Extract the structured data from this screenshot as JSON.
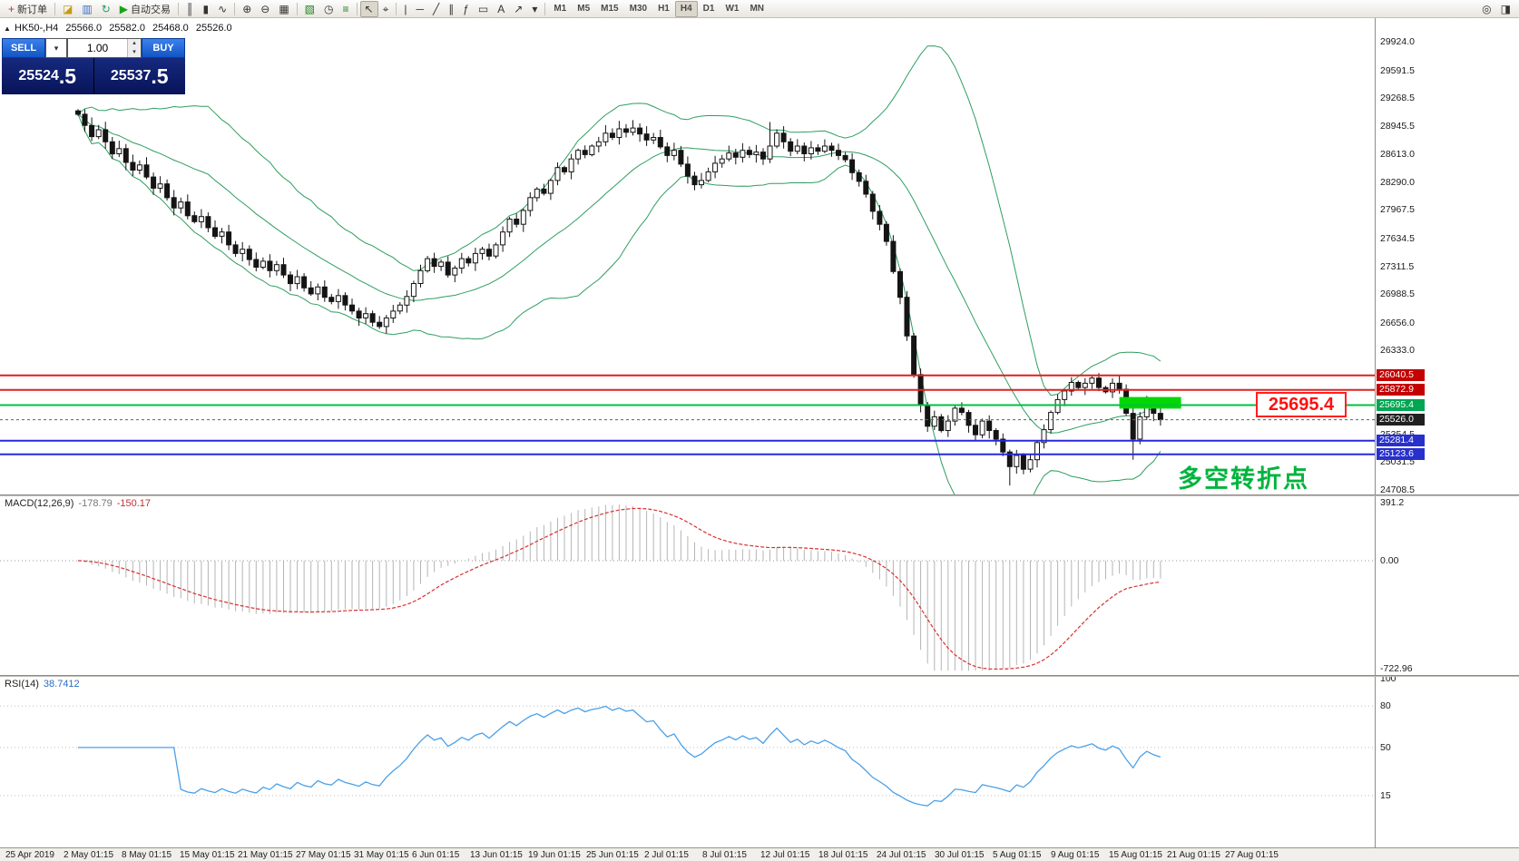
{
  "icons": {
    "collapse": "▲",
    "caret_down": "▾",
    "spin_up": "▴",
    "spin_down": "▾"
  },
  "toolbar": {
    "groups": [
      {
        "items": [
          {
            "name": "new-order-button",
            "glyph": "+",
            "glyph_color": "#c93030",
            "label": "新订单"
          }
        ]
      },
      {
        "items": [
          {
            "name": "chart-window-icon",
            "glyph": "◪",
            "glyph_color": "#c89a10"
          },
          {
            "name": "profile-icon",
            "glyph": "▥",
            "glyph_color": "#3a6cc8"
          },
          {
            "name": "refresh-icon",
            "glyph": "↻",
            "glyph_color": "#2a9a60"
          },
          {
            "name": "autotrading-button",
            "glyph": "▶",
            "glyph_color": "#18a318",
            "label": "自动交易"
          }
        ]
      },
      {
        "items": [
          {
            "name": "bar-chart-type-icon",
            "glyph": "║"
          },
          {
            "name": "candle-chart-type-icon",
            "glyph": "▮"
          },
          {
            "name": "line-chart-type-icon",
            "glyph": "∿"
          }
        ]
      },
      {
        "items": [
          {
            "name": "zoom-in-icon",
            "glyph": "⊕"
          },
          {
            "name": "zoom-out-icon",
            "glyph": "⊖"
          },
          {
            "name": "tile-windows-icon",
            "glyph": "▦"
          }
        ]
      },
      {
        "items": [
          {
            "name": "new-chart-icon",
            "glyph": "▧",
            "glyph_color": "#18831a"
          },
          {
            "name": "periods-icon",
            "glyph": "◷"
          },
          {
            "name": "indicators-icon",
            "glyph": "≡",
            "glyph_color": "#18831a"
          }
        ]
      },
      {
        "items": [
          {
            "name": "cursor-icon",
            "glyph": "↖",
            "active": true
          },
          {
            "name": "crosshair-icon",
            "glyph": "⌖"
          }
        ]
      },
      {
        "items": [
          {
            "name": "vertical-line-icon",
            "glyph": "|"
          },
          {
            "name": "horizontal-line-icon",
            "glyph": "─"
          },
          {
            "name": "trendline-icon",
            "glyph": "╱"
          },
          {
            "name": "channel-icon",
            "glyph": "∥"
          },
          {
            "name": "fibonacci-icon",
            "glyph": "ƒ"
          },
          {
            "name": "shapes-icon",
            "glyph": "▭"
          },
          {
            "name": "text-icon",
            "glyph": "A"
          },
          {
            "name": "arrow-tool-icon",
            "glyph": "↗"
          },
          {
            "name": "objects-dropdown-icon",
            "glyph": "▾"
          }
        ]
      },
      {
        "items": [
          {
            "name": "tf-m1",
            "label": "M1",
            "tf": true
          },
          {
            "name": "tf-m5",
            "label": "M5",
            "tf": true
          },
          {
            "name": "tf-m15",
            "label": "M15",
            "tf": true
          },
          {
            "name": "tf-m30",
            "label": "M30",
            "tf": true
          },
          {
            "name": "tf-h1",
            "label": "H1",
            "tf": true
          },
          {
            "name": "tf-h4",
            "label": "H4",
            "tf": true,
            "active": true
          },
          {
            "name": "tf-d1",
            "label": "D1",
            "tf": true
          },
          {
            "name": "tf-w1",
            "label": "W1",
            "tf": true
          },
          {
            "name": "tf-mn",
            "label": "MN",
            "tf": true
          }
        ]
      }
    ],
    "right_items": [
      {
        "name": "search-icon",
        "glyph": "◎"
      },
      {
        "name": "docking-icon",
        "glyph": "◨"
      }
    ]
  },
  "chart_header": {
    "symbol": "HK50-,H4",
    "open": "25566.0",
    "high": "25582.0",
    "low": "25468.0",
    "close": "25526.0"
  },
  "trade_panel": {
    "sell_label": "SELL",
    "buy_label": "BUY",
    "volume": "1.00",
    "sell_price": "25524",
    "sell_price_big": ".5",
    "buy_price": "25537",
    "buy_price_big": ".5"
  },
  "annotations": {
    "price_tag": "25695.4",
    "turning_point": "多空转折点"
  },
  "macd": {
    "name": "MACD(12,26,9)",
    "value1": "-178.79",
    "value2": "-150.17",
    "axis": [
      "391.2",
      "0.00",
      "-722.96"
    ]
  },
  "rsi": {
    "name": "RSI(14)",
    "value": "38.7412",
    "axis": [
      "100",
      "80",
      "50",
      "15"
    ],
    "levels": [
      80,
      50,
      15
    ]
  },
  "price_axis": {
    "ticks": [
      "29924.0",
      "29591.5",
      "29268.5",
      "28945.5",
      "28613.0",
      "28290.0",
      "27967.5",
      "27634.5",
      "27311.5",
      "26988.5",
      "26656.0",
      "26333.0",
      "25354.5",
      "25031.5",
      "24708.5"
    ],
    "badges": [
      {
        "value": "26040.5",
        "bg": "#c40000"
      },
      {
        "value": "25872.9",
        "bg": "#c40000"
      },
      {
        "value": "25695.4",
        "bg": "#00a651"
      },
      {
        "value": "25526.0",
        "bg": "#202020"
      },
      {
        "value": "25281.4",
        "bg": "#2830cc"
      },
      {
        "value": "25123.6",
        "bg": "#2830cc"
      }
    ]
  },
  "chart_data": {
    "type": "candlestick",
    "symbol": "HK50-",
    "timeframe": "H4",
    "title": "HK50-,H4 25566.0 25582.0 25468.0 25526.0",
    "ylim": [
      24708.5,
      29924.0
    ],
    "closes": [
      29080,
      28950,
      28820,
      28900,
      28760,
      28620,
      28680,
      28520,
      28430,
      28490,
      28350,
      28220,
      28270,
      28110,
      27990,
      28060,
      27900,
      27830,
      27890,
      27760,
      27660,
      27710,
      27560,
      27460,
      27510,
      27390,
      27300,
      27370,
      27260,
      27330,
      27210,
      27110,
      27190,
      27060,
      26990,
      27070,
      26950,
      26900,
      26970,
      26860,
      26790,
      26710,
      26760,
      26660,
      26610,
      26710,
      26790,
      26860,
      26960,
      27110,
      27260,
      27400,
      27310,
      27360,
      27210,
      27290,
      27400,
      27350,
      27460,
      27510,
      27430,
      27560,
      27710,
      27860,
      27800,
      27960,
      28110,
      28210,
      28160,
      28310,
      28460,
      28410,
      28560,
      28660,
      28610,
      28710,
      28760,
      28860,
      28810,
      28910,
      28870,
      28920,
      28850,
      28780,
      28810,
      28700,
      28600,
      28660,
      28500,
      28360,
      28260,
      28310,
      28410,
      28510,
      28560,
      28630,
      28580,
      28660,
      28610,
      28640,
      28560,
      28710,
      28860,
      28760,
      28650,
      28710,
      28620,
      28690,
      28650,
      28710,
      28660,
      28600,
      28550,
      28400,
      28300,
      28150,
      27950,
      27800,
      27600,
      27250,
      26950,
      26500,
      26050,
      25700,
      25450,
      25560,
      25400,
      25510,
      25660,
      25610,
      25460,
      25350,
      25510,
      25400,
      25300,
      25150,
      24980,
      25110,
      24950,
      25060,
      25260,
      25410,
      25610,
      25760,
      25860,
      25960,
      25900,
      25950,
      26010,
      25900,
      25850,
      25950,
      25880,
      25600,
      25300,
      25560,
      25710,
      25600,
      25526
    ],
    "spikes": [
      {
        "index": 101,
        "high": 28990
      },
      {
        "index": 136,
        "low": 24760
      },
      {
        "index": 154,
        "low": 25060
      }
    ],
    "hlines": [
      {
        "price": 26040.5,
        "color": "#e02020",
        "width": 2
      },
      {
        "price": 25872.9,
        "color": "#e02020",
        "width": 2
      },
      {
        "price": 25695.4,
        "color": "#00c040",
        "width": 2
      },
      {
        "price": 25526.0,
        "color": "#606060",
        "width": 1,
        "style": "dotted"
      },
      {
        "price": 25281.4,
        "color": "#2828dd",
        "width": 2
      },
      {
        "price": 25123.6,
        "color": "#2828dd",
        "width": 2
      }
    ],
    "highlight_rect": {
      "bar_start": 152,
      "bar_end": 161,
      "price_top": 25790,
      "price_bottom": 25655,
      "color": "#00d800"
    },
    "indicators": [
      {
        "name": "Bollinger Bands",
        "period": 20,
        "deviation": 2,
        "color": "#2f9e5f"
      },
      {
        "name": "MACD",
        "params": [
          12,
          26,
          9
        ],
        "current": [
          -178.79,
          -150.17
        ],
        "range": [
          391.2,
          -722.96
        ]
      },
      {
        "name": "RSI",
        "period": 14,
        "current": 38.7412,
        "levels": [
          80,
          50,
          15
        ]
      }
    ],
    "x_labels": [
      "25 Apr 2019",
      "2 May 01:15",
      "8 May 01:15",
      "15 May 01:15",
      "21 May 01:15",
      "27 May 01:15",
      "31 May 01:15",
      "6 Jun 01:15",
      "13 Jun 01:15",
      "19 Jun 01:15",
      "25 Jun 01:15",
      "2 Jul 01:15",
      "8 Jul 01:15",
      "12 Jul 01:15",
      "18 Jul 01:15",
      "24 Jul 01:15",
      "30 Jul 01:15",
      "5 Aug 01:15",
      "9 Aug 01:15",
      "15 Aug 01:15",
      "21 Aug 01:15",
      "27 Aug 01:15"
    ]
  }
}
